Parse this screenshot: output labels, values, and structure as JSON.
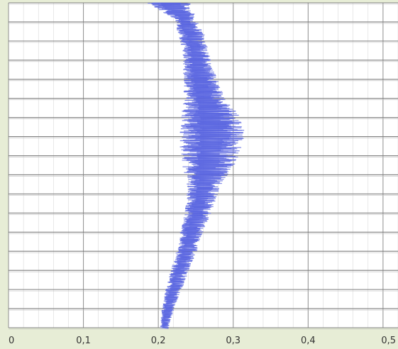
{
  "colors": {
    "background": "#e7edd6",
    "plot_area": "#ffffff",
    "grid": "#8f8f8f",
    "series": "#5b66e0",
    "tick_text": "#333333"
  },
  "chart_data": {
    "type": "line",
    "title": "",
    "xlabel": "",
    "ylabel": "",
    "xlim": [
      0,
      0.52
    ],
    "x_tick_labels": [
      "0",
      "0,1",
      "0,2",
      "0,3",
      "0,4",
      "0,5"
    ],
    "x_tick_values": [
      0,
      0.1,
      0.2,
      0.3,
      0.4,
      0.5
    ],
    "y_tick_labels_shown": false,
    "grid": true,
    "legend": "none",
    "series": [
      {
        "style": "noisy profile",
        "y_relative": [
          0.0,
          0.05,
          0.1,
          0.15,
          0.2,
          0.25,
          0.3,
          0.35,
          0.4,
          0.45,
          0.5,
          0.55,
          0.6,
          0.65,
          0.7,
          0.75,
          0.8,
          0.85,
          0.9,
          0.95,
          1.0
        ],
        "x_center": [
          0.215,
          0.235,
          0.245,
          0.25,
          0.253,
          0.258,
          0.262,
          0.27,
          0.272,
          0.27,
          0.267,
          0.262,
          0.258,
          0.252,
          0.245,
          0.24,
          0.232,
          0.225,
          0.218,
          0.212,
          0.208
        ],
        "x_spread": [
          0.03,
          0.015,
          0.018,
          0.018,
          0.02,
          0.025,
          0.03,
          0.04,
          0.045,
          0.042,
          0.035,
          0.025,
          0.02,
          0.018,
          0.016,
          0.014,
          0.013,
          0.012,
          0.01,
          0.008,
          0.006
        ]
      }
    ]
  }
}
